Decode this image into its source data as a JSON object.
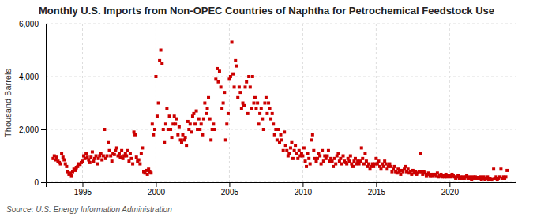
{
  "chart_data": {
    "type": "scatter",
    "title": "Monthly U.S. Imports from Non-OPEC Countries of Naphtha for Petrochemical Feedstock Use",
    "ylabel": "Thousand Barrels",
    "annotations": [
      "Source: U.S. Energy Information Administration"
    ],
    "color": "#cc0000",
    "marker": "square",
    "grid": true,
    "xlim": [
      1992.5,
      2024.5
    ],
    "ylim": [
      0,
      6000
    ],
    "xticks": [
      1995,
      2000,
      2005,
      2010,
      2015,
      2020
    ],
    "yticks": [
      0,
      {
        "value": 2000,
        "label": "2,000"
      },
      {
        "value": 4000,
        "label": "4,000"
      },
      {
        "value": 6000,
        "label": "6,000"
      }
    ],
    "x": [
      1993.0,
      1993.08,
      1993.17,
      1993.25,
      1993.33,
      1993.42,
      1993.5,
      1993.58,
      1993.67,
      1993.75,
      1993.83,
      1993.92,
      1994.0,
      1994.08,
      1994.17,
      1994.25,
      1994.33,
      1994.42,
      1994.5,
      1994.58,
      1994.67,
      1994.75,
      1994.83,
      1994.92,
      1995.0,
      1995.08,
      1995.17,
      1995.25,
      1995.33,
      1995.42,
      1995.5,
      1995.58,
      1995.67,
      1995.75,
      1995.83,
      1995.92,
      1996.0,
      1996.08,
      1996.17,
      1996.25,
      1996.33,
      1996.42,
      1996.5,
      1996.58,
      1996.67,
      1996.75,
      1996.83,
      1996.92,
      1997.0,
      1997.08,
      1997.17,
      1997.25,
      1997.33,
      1997.42,
      1997.5,
      1997.58,
      1997.67,
      1997.75,
      1997.83,
      1997.92,
      1998.0,
      1998.08,
      1998.17,
      1998.25,
      1998.33,
      1998.42,
      1998.5,
      1998.58,
      1998.67,
      1998.75,
      1998.83,
      1998.92,
      1999.0,
      1999.08,
      1999.17,
      1999.25,
      1999.33,
      1999.42,
      1999.5,
      1999.58,
      1999.67,
      1999.75,
      1999.83,
      1999.92,
      2000.0,
      2000.08,
      2000.17,
      2000.25,
      2000.33,
      2000.42,
      2000.5,
      2000.58,
      2000.67,
      2000.75,
      2000.83,
      2000.92,
      2001.0,
      2001.08,
      2001.17,
      2001.25,
      2001.33,
      2001.42,
      2001.5,
      2001.58,
      2001.67,
      2001.75,
      2001.83,
      2001.92,
      2002.0,
      2002.08,
      2002.17,
      2002.25,
      2002.33,
      2002.42,
      2002.5,
      2002.58,
      2002.67,
      2002.75,
      2002.83,
      2002.92,
      2003.0,
      2003.08,
      2003.17,
      2003.25,
      2003.33,
      2003.42,
      2003.5,
      2003.58,
      2003.67,
      2003.75,
      2003.83,
      2003.92,
      2004.0,
      2004.08,
      2004.17,
      2004.25,
      2004.33,
      2004.42,
      2004.5,
      2004.58,
      2004.67,
      2004.75,
      2004.83,
      2004.92,
      2005.0,
      2005.08,
      2005.17,
      2005.25,
      2005.33,
      2005.42,
      2005.5,
      2005.58,
      2005.67,
      2005.75,
      2005.83,
      2005.92,
      2006.0,
      2006.08,
      2006.17,
      2006.25,
      2006.33,
      2006.42,
      2006.5,
      2006.58,
      2006.67,
      2006.75,
      2006.83,
      2006.92,
      2007.0,
      2007.08,
      2007.17,
      2007.25,
      2007.33,
      2007.42,
      2007.5,
      2007.58,
      2007.67,
      2007.75,
      2007.83,
      2007.92,
      2008.0,
      2008.08,
      2008.17,
      2008.25,
      2008.33,
      2008.42,
      2008.5,
      2008.58,
      2008.67,
      2008.75,
      2008.83,
      2008.92,
      2009.0,
      2009.08,
      2009.17,
      2009.25,
      2009.33,
      2009.42,
      2009.5,
      2009.58,
      2009.67,
      2009.75,
      2009.83,
      2009.92,
      2010.0,
      2010.08,
      2010.17,
      2010.25,
      2010.33,
      2010.42,
      2010.5,
      2010.58,
      2010.67,
      2010.75,
      2010.83,
      2010.92,
      2011.0,
      2011.08,
      2011.17,
      2011.25,
      2011.33,
      2011.42,
      2011.5,
      2011.58,
      2011.67,
      2011.75,
      2011.83,
      2011.92,
      2012.0,
      2012.08,
      2012.17,
      2012.25,
      2012.33,
      2012.42,
      2012.5,
      2012.58,
      2012.67,
      2012.75,
      2012.83,
      2012.92,
      2013.0,
      2013.08,
      2013.17,
      2013.25,
      2013.33,
      2013.42,
      2013.5,
      2013.58,
      2013.67,
      2013.75,
      2013.83,
      2013.92,
      2014.0,
      2014.08,
      2014.17,
      2014.25,
      2014.33,
      2014.42,
      2014.5,
      2014.58,
      2014.67,
      2014.75,
      2014.83,
      2014.92,
      2015.0,
      2015.08,
      2015.17,
      2015.25,
      2015.33,
      2015.42,
      2015.5,
      2015.58,
      2015.67,
      2015.75,
      2015.83,
      2015.92,
      2016.0,
      2016.08,
      2016.17,
      2016.25,
      2016.33,
      2016.42,
      2016.5,
      2016.58,
      2016.67,
      2016.75,
      2016.83,
      2016.92,
      2017.0,
      2017.08,
      2017.17,
      2017.25,
      2017.33,
      2017.42,
      2017.5,
      2017.58,
      2017.67,
      2017.75,
      2017.83,
      2017.92,
      2018.0,
      2018.08,
      2018.17,
      2018.25,
      2018.33,
      2018.42,
      2018.5,
      2018.58,
      2018.67,
      2018.75,
      2018.83,
      2018.92,
      2019.0,
      2019.08,
      2019.17,
      2019.25,
      2019.33,
      2019.42,
      2019.5,
      2019.58,
      2019.67,
      2019.75,
      2019.83,
      2019.92,
      2020.0,
      2020.08,
      2020.17,
      2020.25,
      2020.33,
      2020.42,
      2020.5,
      2020.58,
      2020.67,
      2020.75,
      2020.83,
      2020.92,
      2021.0,
      2021.08,
      2021.17,
      2021.25,
      2021.33,
      2021.42,
      2021.5,
      2021.58,
      2021.67,
      2021.75,
      2021.83,
      2021.92,
      2022.0,
      2022.08,
      2022.17,
      2022.25,
      2022.33,
      2022.42,
      2022.5,
      2022.58,
      2022.67,
      2022.75,
      2022.83,
      2022.92,
      2023.0,
      2023.08,
      2023.17,
      2023.25,
      2023.33,
      2023.42,
      2023.5,
      2023.58,
      2023.67,
      2023.75,
      2023.83,
      2023.92
    ],
    "values": [
      900,
      1000,
      850,
      950,
      800,
      750,
      700,
      1100,
      950,
      850,
      700,
      600,
      400,
      300,
      350,
      250,
      400,
      500,
      450,
      550,
      600,
      700,
      650,
      750,
      800,
      1000,
      900,
      1100,
      950,
      850,
      750,
      950,
      1150,
      800,
      900,
      1000,
      700,
      900,
      1000,
      1100,
      850,
      1000,
      2000,
      900,
      1000,
      1500,
      1200,
      1000,
      800,
      1100,
      1050,
      1200,
      1300,
      1000,
      1100,
      950,
      1200,
      900,
      1000,
      1100,
      1000,
      1200,
      800,
      1100,
      900,
      700,
      1900,
      1800,
      950,
      800,
      850,
      700,
      1100,
      1300,
      400,
      350,
      450,
      300,
      500,
      400,
      350,
      2200,
      1800,
      2000,
      4000,
      2500,
      3000,
      4600,
      5000,
      4500,
      2000,
      1500,
      2200,
      2800,
      2000,
      2500,
      2000,
      1700,
      2200,
      2500,
      2200,
      2400,
      1800,
      2100,
      1600,
      1500,
      1800,
      1600,
      1700,
      1400,
      2300,
      2000,
      2200,
      1900,
      2500,
      2600,
      2200,
      2700,
      2000,
      2400,
      2000,
      2200,
      1800,
      2400,
      3000,
      2600,
      2800,
      3200,
      2400,
      1600,
      2000,
      2200,
      2000,
      3900,
      4300,
      3800,
      4200,
      3600,
      2800,
      3000,
      3400,
      1600,
      2200,
      2600,
      3900,
      4000,
      5300,
      4100,
      3600,
      4600,
      4400,
      3200,
      3600,
      3400,
      2800,
      3000,
      2900,
      3600,
      3800,
      2600,
      4000,
      3600,
      2800,
      4000,
      3000,
      3200,
      2800,
      3000,
      2200,
      2600,
      2800,
      2400,
      2000,
      3000,
      3200,
      2600,
      3000,
      2800,
      2400,
      2600,
      2200,
      1800,
      2000,
      1600,
      2000,
      1500,
      1800,
      1600,
      1200,
      1900,
      1400,
      1200,
      1000,
      1100,
      1300,
      1500,
      900,
      1200,
      1400,
      1100,
      900,
      1200,
      1000,
      1100,
      1000,
      1300,
      800,
      600,
      1100,
      900,
      700,
      1600,
      1800,
      1200,
      900,
      800,
      900,
      1100,
      1000,
      700,
      1200,
      800,
      1000,
      900,
      1000,
      1200,
      800,
      900,
      800,
      600,
      900,
      700,
      1000,
      1100,
      800,
      900,
      700,
      1000,
      800,
      750,
      700,
      900,
      800,
      1000,
      700,
      600,
      800,
      900,
      700,
      800,
      700,
      800,
      1300,
      900,
      700,
      1100,
      800,
      600,
      700,
      500,
      600,
      700,
      600,
      700,
      900,
      700,
      800,
      600,
      500,
      700,
      600,
      800,
      700,
      500,
      600,
      700,
      600,
      400,
      500,
      600,
      400,
      350,
      500,
      400,
      300,
      450,
      400,
      500,
      600,
      400,
      500,
      350,
      400,
      300,
      450,
      350,
      400,
      300,
      350,
      400,
      1100,
      400,
      300,
      400,
      350,
      250,
      300,
      350,
      250,
      300,
      250,
      300,
      300,
      250,
      350,
      200,
      250,
      300,
      200,
      250,
      200,
      300,
      200,
      250,
      250,
      200,
      300,
      250,
      200,
      150,
      200,
      250,
      150,
      200,
      150,
      200,
      150,
      200,
      250,
      150,
      200,
      150,
      100,
      200,
      150,
      200,
      150,
      180,
      150,
      200,
      100,
      150,
      200,
      100,
      150,
      200,
      100,
      150,
      120,
      130,
      500,
      150,
      200,
      100,
      150,
      200,
      500,
      150,
      200,
      150,
      200,
      450
    ]
  }
}
